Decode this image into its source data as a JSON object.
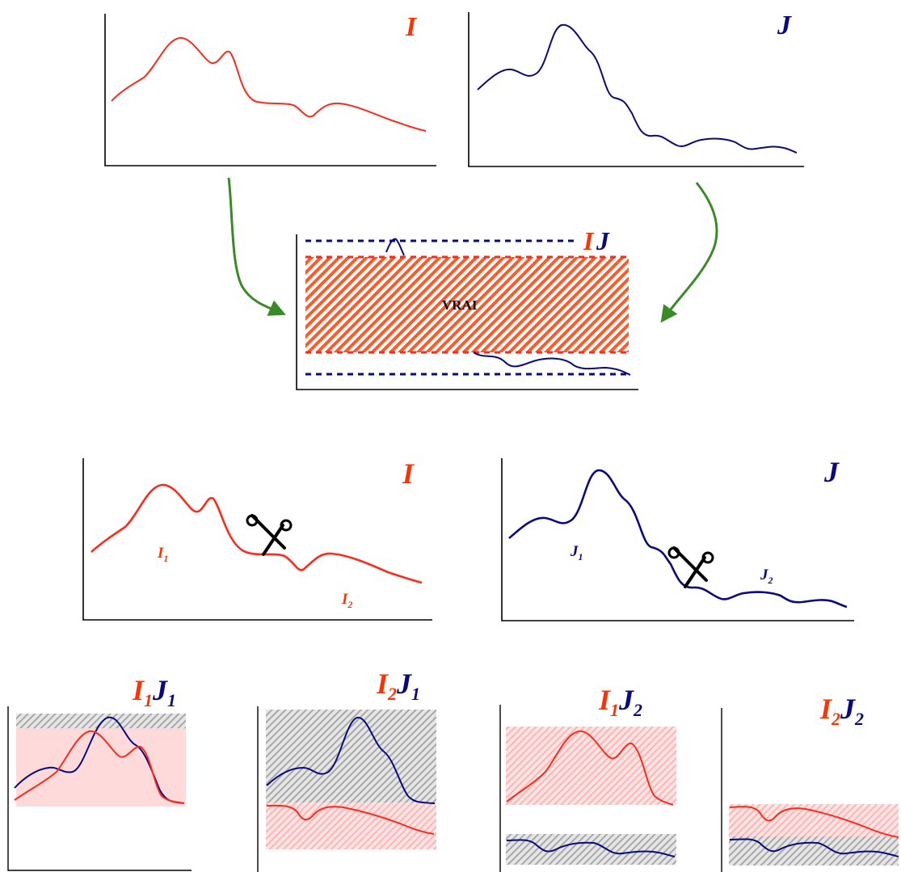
{
  "labels": {
    "top_left": "I",
    "top_right": "J",
    "mid_I": "I",
    "mid_J": "J",
    "vrai": "VRAI",
    "mid_left": "I",
    "mid_right": "J",
    "sub_I1": "I",
    "sub_I1_idx": "1",
    "sub_I2": "I",
    "sub_I2_idx": "2",
    "sub_J1": "J",
    "sub_J1_idx": "1",
    "sub_J2": "J",
    "sub_J2_idx": "2",
    "p1_I": "I",
    "p1_Iidx": "1",
    "p1_J": "J",
    "p1_Jidx": "1",
    "p2_I": "I",
    "p2_Iidx": "2",
    "p2_J": "J",
    "p2_Jidx": "1",
    "p3_I": "I",
    "p3_Iidx": "1",
    "p3_J": "J",
    "p3_Jidx": "2",
    "p4_I": "I",
    "p4_Iidx": "2",
    "p4_J": "J",
    "p4_Jidx": "2"
  },
  "colors": {
    "red": "#ff2a1a",
    "label_red": "#ff3300",
    "blue": "#0a0a80",
    "green": "#3a8a28",
    "hatch_red": "#ff5a2a",
    "pink_fill": "#ffd6d6",
    "grey_hatch": "#9a9a9a"
  },
  "icons": {
    "scissors": "scissors-icon",
    "arrow": "curved-arrow-icon"
  }
}
